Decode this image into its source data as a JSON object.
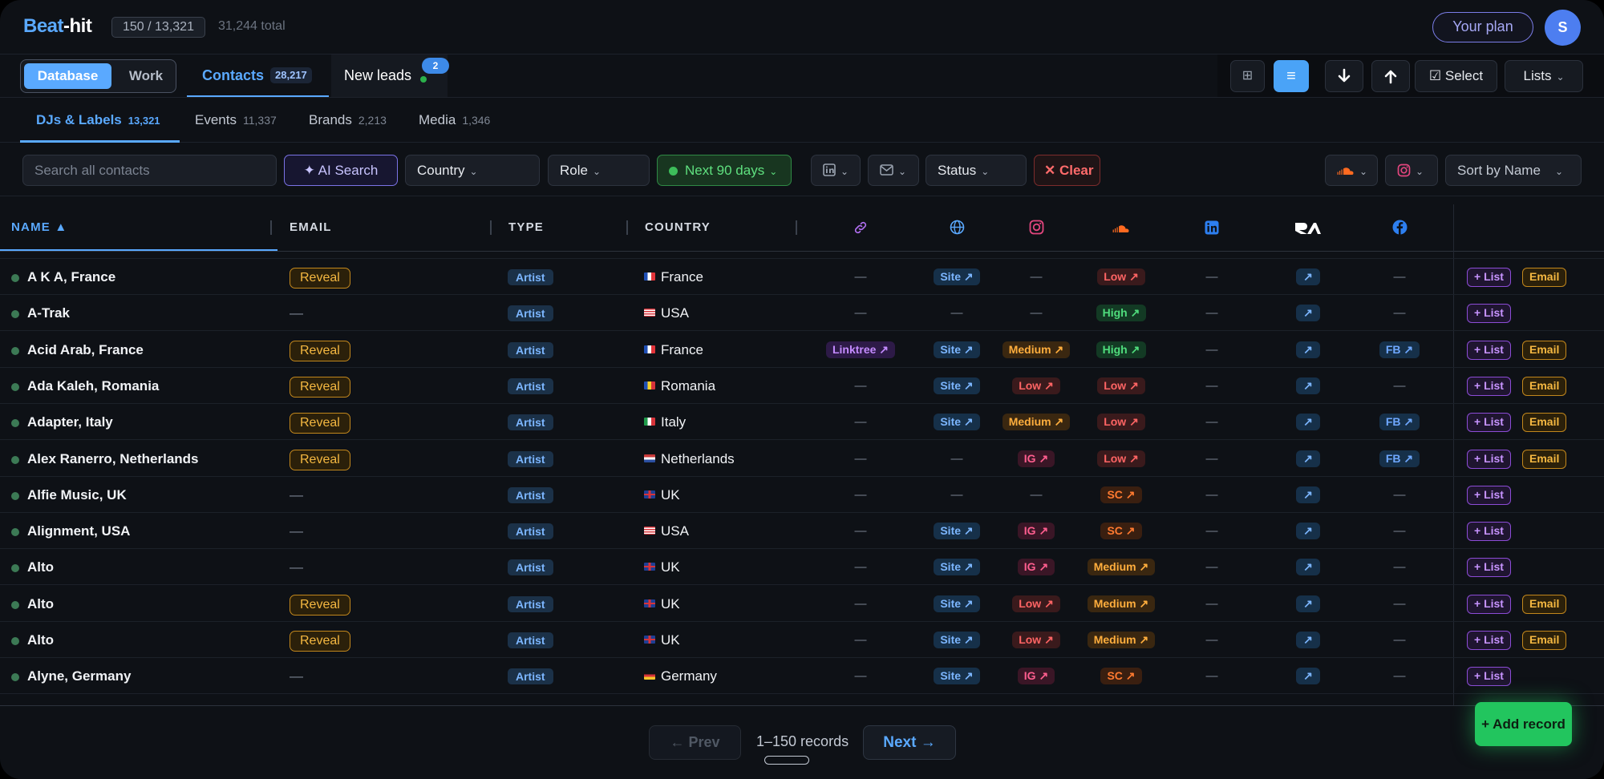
{
  "app": {
    "logo_part1": "Beat",
    "logo_part2": "-hit",
    "counter": "150 / 13,321",
    "total": "31,244 total",
    "your_plan": "Your plan",
    "avatar_initial": "S"
  },
  "nav": {
    "segment": {
      "database": "Database",
      "work": "Work"
    },
    "contacts_label": "Contacts",
    "contacts_count": "28,217",
    "new_leads_label": "New leads",
    "new_leads_badge": "2",
    "select_label": "☑ Select",
    "lists_label": "Lists"
  },
  "subtabs": [
    {
      "label": "DJs & Labels",
      "count": "13,321"
    },
    {
      "label": "Events",
      "count": "11,337"
    },
    {
      "label": "Brands",
      "count": "2,213"
    },
    {
      "label": "Media",
      "count": "1,346"
    }
  ],
  "filters": {
    "search_placeholder": "Search all contacts",
    "ai_search": "✦ AI Search",
    "country": "Country",
    "role": "Role",
    "next_days": "Next 90 days",
    "status": "Status",
    "clear": "✕ Clear",
    "sort": "Sort by Name"
  },
  "table": {
    "headers": {
      "name": "NAME ▲",
      "email": "EMAIL",
      "type": "TYPE",
      "country": "COUNTRY"
    },
    "icon_columns": [
      "link-icon",
      "globe-icon",
      "instagram-icon",
      "soundcloud-icon",
      "linkedin-icon",
      "ra-icon",
      "facebook-icon"
    ],
    "rows": [
      {
        "name": "A K A, France",
        "email": "Reveal",
        "type": "Artist",
        "flag": "fr",
        "country": "France",
        "link": "—",
        "site": "Site ↗",
        "ig": "—",
        "sc": "Low ↗",
        "li": "—",
        "ra": "↗",
        "fb": "—",
        "list": "+ List",
        "action_email": "Email"
      },
      {
        "name": "A-Trak",
        "email": "—",
        "type": "Artist",
        "flag": "us",
        "country": "USA",
        "link": "—",
        "site": "—",
        "ig": "—",
        "sc": "High ↗",
        "li": "—",
        "ra": "↗",
        "fb": "—",
        "list": "+ List",
        "action_email": ""
      },
      {
        "name": "Acid Arab, France",
        "email": "Reveal",
        "type": "Artist",
        "flag": "fr",
        "country": "France",
        "link": "Linktree ↗",
        "site": "Site ↗",
        "ig": "Medium ↗",
        "sc": "High ↗",
        "li": "—",
        "ra": "↗",
        "fb": "FB ↗",
        "list": "+ List",
        "action_email": "Email"
      },
      {
        "name": "Ada Kaleh, Romania",
        "email": "Reveal",
        "type": "Artist",
        "flag": "ro",
        "country": "Romania",
        "link": "—",
        "site": "Site ↗",
        "ig": "Low ↗",
        "sc": "Low ↗",
        "li": "—",
        "ra": "↗",
        "fb": "—",
        "list": "+ List",
        "action_email": "Email"
      },
      {
        "name": "Adapter, Italy",
        "email": "Reveal",
        "type": "Artist",
        "flag": "it",
        "country": "Italy",
        "link": "—",
        "site": "Site ↗",
        "ig": "Medium ↗",
        "sc": "Low ↗",
        "li": "—",
        "ra": "↗",
        "fb": "FB ↗",
        "list": "+ List",
        "action_email": "Email"
      },
      {
        "name": "Alex Ranerro, Netherlands",
        "email": "Reveal",
        "type": "Artist",
        "flag": "nl",
        "country": "Netherlands",
        "link": "—",
        "site": "—",
        "ig": "IG ↗",
        "sc": "Low ↗",
        "li": "—",
        "ra": "↗",
        "fb": "FB ↗",
        "list": "+ List",
        "action_email": "Email"
      },
      {
        "name": "Alfie Music, UK",
        "email": "—",
        "type": "Artist",
        "flag": "uk",
        "country": "UK",
        "link": "—",
        "site": "—",
        "ig": "—",
        "sc": "SC ↗",
        "li": "—",
        "ra": "↗",
        "fb": "—",
        "list": "+ List",
        "action_email": ""
      },
      {
        "name": "Alignment, USA",
        "email": "—",
        "type": "Artist",
        "flag": "us",
        "country": "USA",
        "link": "—",
        "site": "Site ↗",
        "ig": "IG ↗",
        "sc": "SC ↗",
        "li": "—",
        "ra": "↗",
        "fb": "—",
        "list": "+ List",
        "action_email": ""
      },
      {
        "name": "Alto",
        "email": "—",
        "type": "Artist",
        "flag": "uk",
        "country": "UK",
        "link": "—",
        "site": "Site ↗",
        "ig": "IG ↗",
        "sc": "Medium ↗",
        "li": "—",
        "ra": "↗",
        "fb": "—",
        "list": "+ List",
        "action_email": ""
      },
      {
        "name": "Alto",
        "email": "Reveal",
        "type": "Artist",
        "flag": "uk",
        "country": "UK",
        "link": "—",
        "site": "Site ↗",
        "ig": "Low ↗",
        "sc": "Medium ↗",
        "li": "—",
        "ra": "↗",
        "fb": "—",
        "list": "+ List",
        "action_email": "Email"
      },
      {
        "name": "Alto",
        "email": "Reveal",
        "type": "Artist",
        "flag": "uk",
        "country": "UK",
        "link": "—",
        "site": "Site ↗",
        "ig": "Low ↗",
        "sc": "Medium ↗",
        "li": "—",
        "ra": "↗",
        "fb": "—",
        "list": "+ List",
        "action_email": "Email"
      },
      {
        "name": "Alyne, Germany",
        "email": "—",
        "type": "Artist",
        "flag": "de",
        "country": "Germany",
        "link": "—",
        "site": "Site ↗",
        "ig": "IG ↗",
        "sc": "SC ↗",
        "li": "—",
        "ra": "↗",
        "fb": "—",
        "list": "+ List",
        "action_email": ""
      }
    ]
  },
  "footer": {
    "prev": "← Prev",
    "records": "1–150 records",
    "next": "Next →",
    "add_record": "+ Add record"
  },
  "colors": {
    "accent": "#5aa9ff",
    "background": "#0e1116",
    "reveal": "#f5b841",
    "list": "#c793ff",
    "add_record": "#22c55e"
  }
}
